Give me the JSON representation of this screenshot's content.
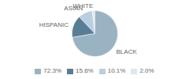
{
  "chart_data": {
    "type": "pie",
    "categories": [
      "WHITE",
      "ASIAN",
      "HISPANIC",
      "BLACK"
    ],
    "values": [
      2.0,
      10.1,
      15.6,
      72.3
    ],
    "value_labels": [
      "2.0%",
      "10.1%",
      "15.6%",
      "72.3%"
    ],
    "colors": [
      "#dde8f0",
      "#b8cfe0",
      "#5a7d96",
      "#9ab3c3"
    ],
    "legend": "bottom"
  }
}
